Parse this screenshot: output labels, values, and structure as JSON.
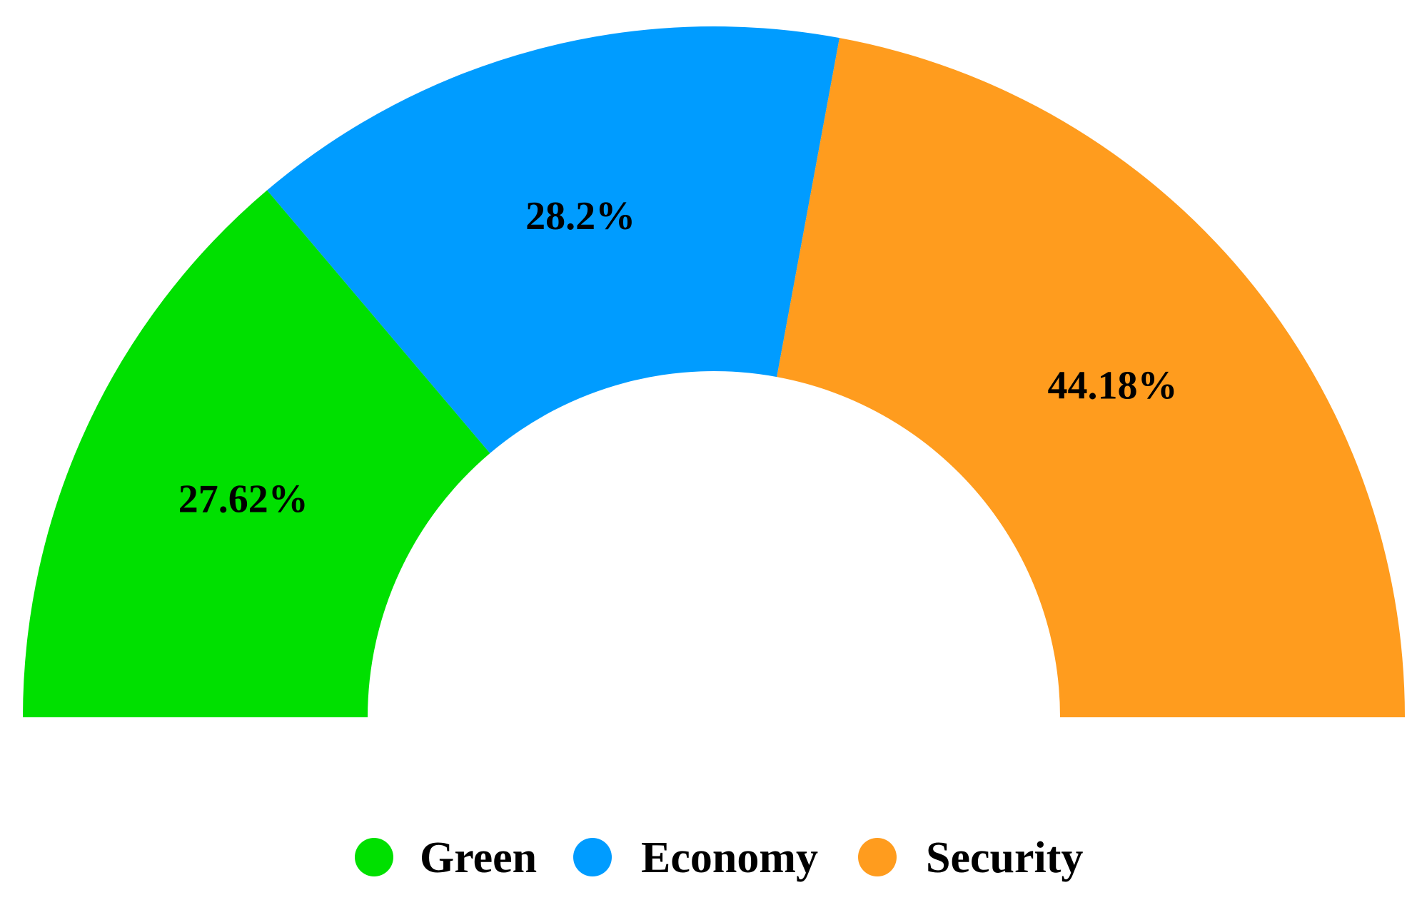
{
  "chart_data": {
    "type": "pie",
    "variant": "half-donut",
    "title": "",
    "categories": [
      "Green",
      "Economy",
      "Security"
    ],
    "values": [
      27.62,
      28.2,
      44.18
    ],
    "labels": [
      "27.62%",
      "28.2%",
      "44.18%"
    ],
    "colors": [
      "#00e000",
      "#009cff",
      "#ff9c1e"
    ],
    "legend_position": "bottom"
  },
  "legend": {
    "items": [
      {
        "label": "Green",
        "color": "#00e000"
      },
      {
        "label": "Economy",
        "color": "#009cff"
      },
      {
        "label": "Security",
        "color": "#ff9c1e"
      }
    ]
  }
}
